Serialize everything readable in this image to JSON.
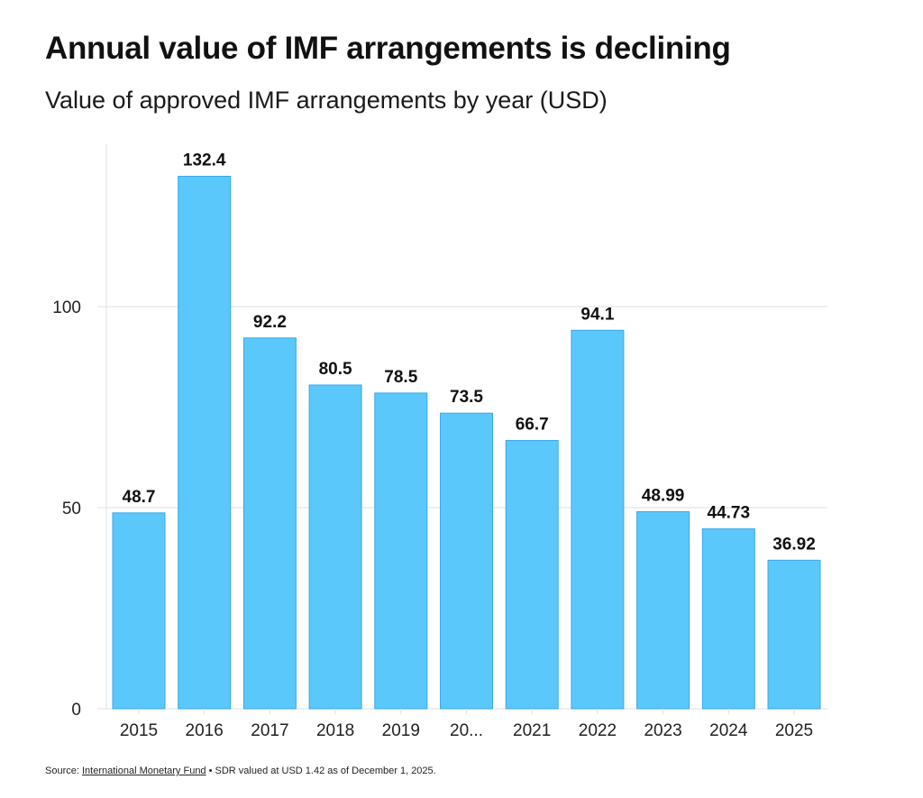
{
  "title": "Annual value of IMF arrangements is declining",
  "subtitle": "Value of approved IMF arrangements by year (USD)",
  "footer": {
    "prefix": "Source: ",
    "link_text": "International Monetary Fund",
    "separator": " • ",
    "note": "SDR valued at USD 1.42 as of December 1, 2025."
  },
  "colors": {
    "bar": "#5ac8fa",
    "bar_edge": "#3aa8ea",
    "grid": "#dcdfe3",
    "text": "#111111"
  },
  "chart_data": {
    "type": "bar",
    "title": "Annual value of IMF arrangements is declining",
    "subtitle": "Value of approved IMF arrangements by year (USD)",
    "xlabel": "",
    "ylabel": "",
    "categories": [
      "2015",
      "2016",
      "2017",
      "2018",
      "2019",
      "20...",
      "2021",
      "2022",
      "2023",
      "2024",
      "2025"
    ],
    "values": [
      48.7,
      132.4,
      92.2,
      80.5,
      78.5,
      73.5,
      66.7,
      94.1,
      48.99,
      44.73,
      36.92
    ],
    "data_labels": [
      "48.7",
      "132.4",
      "92.2",
      "80.5",
      "78.5",
      "73.5",
      "66.7",
      "94.1",
      "48.99",
      "44.73",
      "36.92"
    ],
    "ylim": [
      0,
      135
    ],
    "yticks": [
      0,
      50,
      100
    ],
    "ytick_labels": [
      "0",
      "50",
      "100"
    ],
    "grid": true,
    "legend": "none"
  }
}
